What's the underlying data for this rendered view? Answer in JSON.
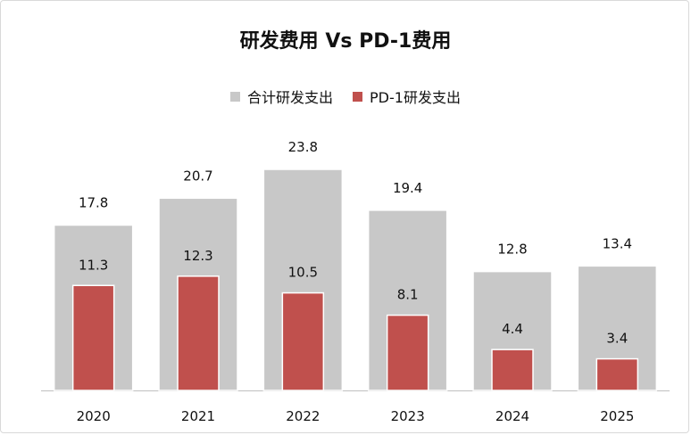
{
  "chart_data": {
    "type": "bar",
    "title": "研发费用 Vs PD-1费用",
    "categories": [
      "2020",
      "2021",
      "2022",
      "2023",
      "2024",
      "2025"
    ],
    "series": [
      {
        "name": "合计研发支出",
        "values": [
          17.8,
          20.7,
          23.8,
          19.4,
          12.8,
          13.4
        ],
        "color": "#c8c8c8"
      },
      {
        "name": "PD-1研发支出",
        "values": [
          11.3,
          12.3,
          10.5,
          8.1,
          4.4,
          3.4
        ],
        "color": "#c0504d"
      }
    ],
    "xlabel": "",
    "ylabel": "",
    "ylim": [
      0,
      23.8
    ],
    "grid": false,
    "legend_position": "top"
  }
}
